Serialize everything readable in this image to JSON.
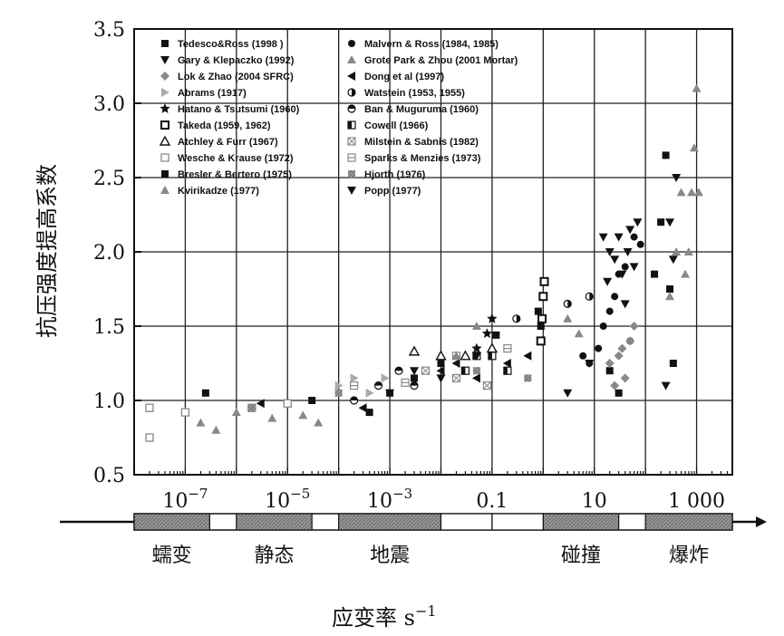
{
  "chart_data": {
    "type": "scatter",
    "title": "",
    "ylabel": "抗压强度提高系数",
    "xlabel": "应变率 s",
    "xlabel_sup": "−1",
    "xscale": "log",
    "xlim": [
      1e-08,
      5000
    ],
    "ylim": [
      0.5,
      3.5
    ],
    "yticks": [
      "0.5",
      "1.0",
      "1.5",
      "2.0",
      "2.5",
      "3.0",
      "3.5"
    ],
    "xticks": [
      {
        "value": 1e-07,
        "base": "10",
        "exp": "−7"
      },
      {
        "value": 1e-05,
        "base": "10",
        "exp": "−5"
      },
      {
        "value": 0.001,
        "base": "10",
        "exp": "−3"
      },
      {
        "value": 0.1,
        "label": "0.1"
      },
      {
        "value": 10,
        "label": "10"
      },
      {
        "value": 1000,
        "label": "1 000"
      }
    ],
    "grid": true,
    "legend_position": "top-left",
    "regimes": [
      {
        "label": "蠕变",
        "from": 1e-08,
        "to": 3e-07
      },
      {
        "label": "静态",
        "from": 1e-06,
        "to": 3e-05
      },
      {
        "label": "地震",
        "from": 0.0001,
        "to": 0.01
      },
      {
        "label": "碰撞",
        "from": 1,
        "to": 30
      },
      {
        "label": "爆炸",
        "from": 100,
        "to": 5000
      }
    ],
    "series": [
      {
        "name": "Tedesco&Ross  (1998 )",
        "marker": "square",
        "color": "#111111",
        "points": [
          [
            2.5e-07,
            1.05
          ],
          [
            3e-05,
            1.0
          ],
          [
            0.12,
            1.44
          ],
          [
            0.8,
            1.6
          ],
          [
            0.9,
            1.5
          ],
          [
            20,
            1.2
          ],
          [
            30,
            1.05
          ],
          [
            150,
            1.85
          ],
          [
            200,
            2.2
          ],
          [
            250,
            2.65
          ],
          [
            300,
            1.75
          ],
          [
            350,
            1.25
          ]
        ]
      },
      {
        "name": "Malvern & Ross  (1984, 1985)",
        "marker": "circle",
        "color": "#111111",
        "points": [
          [
            6,
            1.3
          ],
          [
            8,
            1.25
          ],
          [
            12,
            1.35
          ],
          [
            15,
            1.5
          ],
          [
            20,
            1.6
          ],
          [
            25,
            1.7
          ],
          [
            30,
            1.85
          ],
          [
            40,
            1.9
          ],
          [
            50,
            1.4
          ],
          [
            60,
            2.1
          ],
          [
            80,
            2.05
          ]
        ]
      },
      {
        "name": "Gary & Klepaczko (1992)",
        "marker": "tri-down",
        "color": "#111111",
        "points": [
          [
            15,
            2.1
          ],
          [
            18,
            1.8
          ],
          [
            20,
            2.0
          ],
          [
            25,
            1.95
          ],
          [
            30,
            2.1
          ],
          [
            35,
            1.85
          ],
          [
            40,
            1.65
          ],
          [
            45,
            2.0
          ],
          [
            50,
            2.15
          ],
          [
            60,
            1.9
          ],
          [
            70,
            2.2
          ],
          [
            250,
            1.1
          ],
          [
            300,
            2.2
          ],
          [
            350,
            1.95
          ],
          [
            400,
            2.5
          ]
        ]
      },
      {
        "name": "Grote Park & Zhou (2001 Mortar)",
        "marker": "tri-up",
        "color": "#888888",
        "points": [
          [
            300,
            1.7
          ],
          [
            400,
            2.0
          ],
          [
            500,
            2.4
          ],
          [
            600,
            1.85
          ],
          [
            700,
            2.0
          ],
          [
            800,
            2.4
          ],
          [
            900,
            2.7
          ],
          [
            1000,
            3.1
          ],
          [
            1100,
            2.4
          ]
        ]
      },
      {
        "name": "Lok & Zhao (2004 SFRC)",
        "marker": "diamond",
        "color": "#888888",
        "points": [
          [
            20,
            1.25
          ],
          [
            25,
            1.1
          ],
          [
            30,
            1.3
          ],
          [
            35,
            1.35
          ],
          [
            40,
            1.15
          ],
          [
            50,
            1.4
          ],
          [
            60,
            1.5
          ]
        ]
      },
      {
        "name": "Dong et al (1997)",
        "marker": "tri-left",
        "color": "#111111",
        "points": [
          [
            3e-06,
            0.98
          ],
          [
            0.0003,
            0.95
          ],
          [
            0.01,
            1.2
          ],
          [
            0.02,
            1.25
          ],
          [
            0.05,
            1.15
          ],
          [
            0.2,
            1.25
          ],
          [
            0.5,
            1.3
          ]
        ]
      },
      {
        "name": "Abrams (1917)",
        "marker": "tri-right",
        "color": "#aaaaaa",
        "points": [
          [
            0.0001,
            1.1
          ],
          [
            0.0002,
            1.15
          ],
          [
            0.0004,
            1.05
          ],
          [
            0.0008,
            1.15
          ]
        ]
      },
      {
        "name": "Watstein (1953, 1955)",
        "marker": "half-circle",
        "color": "#111111",
        "points": [
          [
            0.3,
            1.55
          ],
          [
            3,
            1.65
          ],
          [
            8,
            1.7
          ]
        ]
      },
      {
        "name": "Hatano & Tsutsumi (1960)",
        "marker": "star",
        "color": "#111111",
        "points": [
          [
            0.1,
            1.55
          ],
          [
            0.08,
            1.45
          ],
          [
            0.05,
            1.35
          ]
        ]
      },
      {
        "name": "Ban & Muguruma (1960)",
        "marker": "half-circle-v",
        "color": "#111111",
        "points": [
          [
            0.0002,
            1.0
          ],
          [
            0.0006,
            1.1
          ],
          [
            0.0015,
            1.2
          ],
          [
            0.003,
            1.1
          ]
        ]
      },
      {
        "name": "Takeda (1959, 1962)",
        "marker": "square-open-dark",
        "color": "#111111",
        "points": [
          [
            0.9,
            1.4
          ],
          [
            0.95,
            1.55
          ],
          [
            1.0,
            1.7
          ],
          [
            1.05,
            1.8
          ]
        ]
      },
      {
        "name": "Cowell (1966)",
        "marker": "half-square",
        "color": "#111111",
        "points": [
          [
            0.03,
            1.2
          ],
          [
            0.05,
            1.3
          ],
          [
            0.1,
            1.3
          ],
          [
            0.2,
            1.2
          ]
        ]
      },
      {
        "name": "Atchley & Furr (1967)",
        "marker": "tri-up-open",
        "color": "#111111",
        "points": [
          [
            0.003,
            1.33
          ],
          [
            0.01,
            1.3
          ],
          [
            0.03,
            1.3
          ],
          [
            0.1,
            1.35
          ]
        ]
      },
      {
        "name": "Milstein & Sabnis (1982)",
        "marker": "square-x",
        "color": "#888888",
        "points": [
          [
            0.005,
            1.2
          ],
          [
            0.02,
            1.15
          ],
          [
            0.08,
            1.1
          ]
        ]
      },
      {
        "name": "Wesche & Krause (1972)",
        "marker": "square-open",
        "color": "#888888",
        "points": [
          [
            2e-08,
            0.95
          ],
          [
            2e-08,
            0.75
          ],
          [
            1e-07,
            0.92
          ],
          [
            2e-06,
            0.95
          ],
          [
            1e-05,
            0.98
          ]
        ]
      },
      {
        "name": "Sparks & Menzies (1973)",
        "marker": "square-lined",
        "color": "#888888",
        "points": [
          [
            0.0002,
            1.1
          ],
          [
            0.002,
            1.12
          ],
          [
            0.02,
            1.3
          ],
          [
            0.2,
            1.35
          ]
        ]
      },
      {
        "name": "Bresler & Bertero (1975)",
        "marker": "square",
        "color": "#111111",
        "points": [
          [
            0.0004,
            0.92
          ],
          [
            0.001,
            1.05
          ],
          [
            0.003,
            1.15
          ],
          [
            0.01,
            1.25
          ]
        ]
      },
      {
        "name": "Hjorth (1976)",
        "marker": "square-hatch",
        "color": "#888888",
        "points": [
          [
            2e-06,
            0.95
          ],
          [
            0.0001,
            1.05
          ],
          [
            0.05,
            1.2
          ],
          [
            0.5,
            1.15
          ]
        ]
      },
      {
        "name": "Kvirikadze (1977)",
        "marker": "tri-up",
        "color": "#888888",
        "points": [
          [
            2e-07,
            0.85
          ],
          [
            4e-07,
            0.8
          ],
          [
            1e-06,
            0.92
          ],
          [
            5e-06,
            0.88
          ],
          [
            2e-05,
            0.9
          ],
          [
            4e-05,
            0.85
          ],
          [
            0.02,
            1.3
          ],
          [
            0.05,
            1.5
          ],
          [
            3,
            1.55
          ],
          [
            5,
            1.45
          ]
        ]
      },
      {
        "name": "Popp (1977)",
        "marker": "tri-down",
        "color": "#111111",
        "points": [
          [
            0.001,
            1.05
          ],
          [
            0.003,
            1.2
          ],
          [
            0.01,
            1.15
          ],
          [
            0.05,
            1.3
          ],
          [
            3,
            1.05
          ],
          [
            8,
            1.25
          ]
        ]
      }
    ]
  }
}
